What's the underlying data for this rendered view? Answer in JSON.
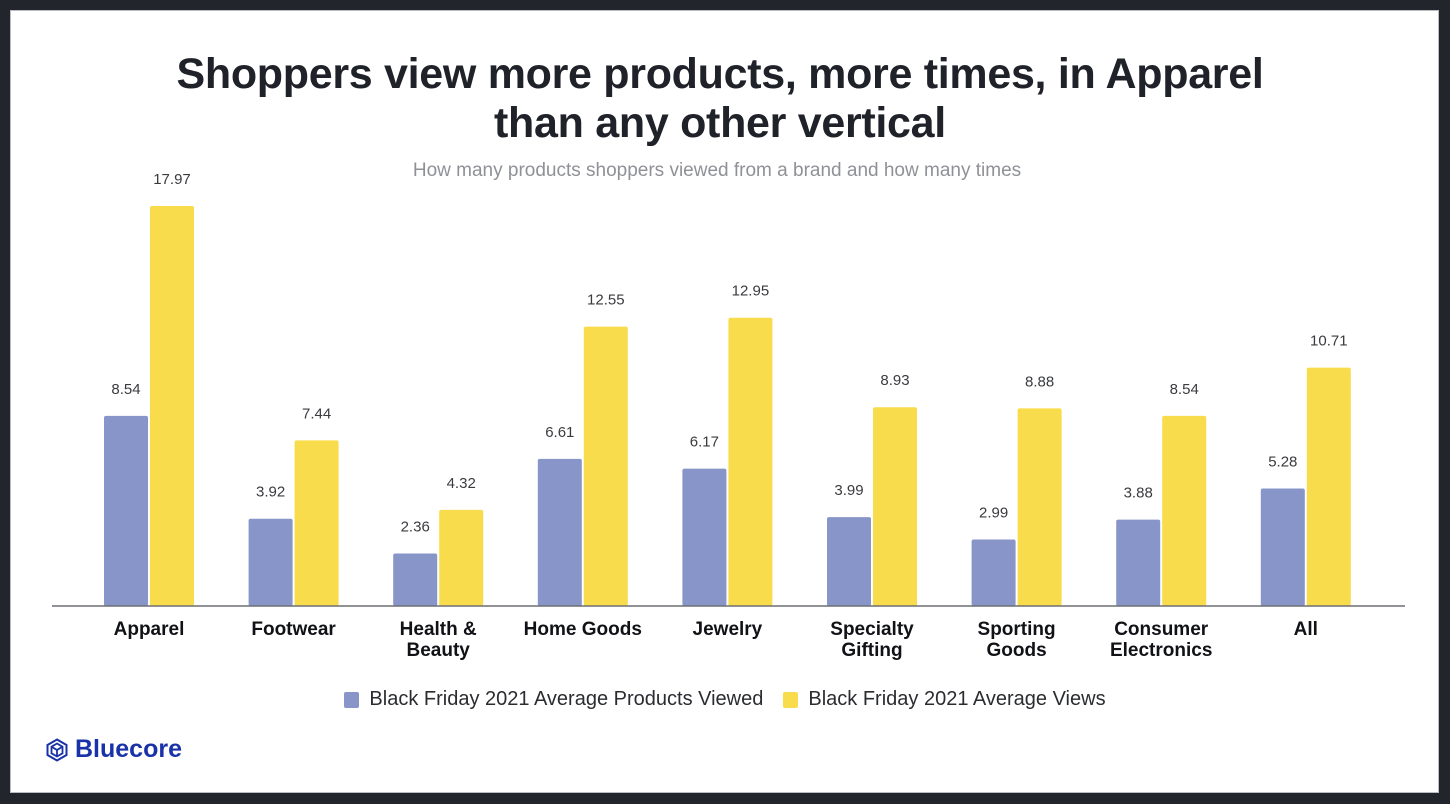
{
  "title_line1": "Shoppers view more products, more times, in Apparel",
  "title_line2": "than any other vertical",
  "subtitle": "How many products shoppers viewed from a brand and how many times",
  "logo": {
    "icon": "cube-icon",
    "text": "Bluecore",
    "color": "#1a32a8"
  },
  "legend": [
    {
      "label": "Black Friday 2021 Average Products Viewed",
      "color": "#8795c8"
    },
    {
      "label": "Black Friday 2021 Average Views",
      "color": "#f9dc4b"
    }
  ],
  "chart_data": {
    "type": "bar",
    "title": "Shoppers view more products, more times, in Apparel than any other vertical",
    "subtitle": "How many products shoppers viewed from a brand and how many times",
    "xlabel": "",
    "ylabel": "",
    "ylim": [
      0,
      17.97
    ],
    "grid": false,
    "legend_position": "bottom",
    "categories": [
      [
        "Apparel"
      ],
      [
        "Footwear"
      ],
      [
        "Health &",
        "Beauty"
      ],
      [
        "Home Goods"
      ],
      [
        "Jewelry"
      ],
      [
        "Specialty",
        "Gifting"
      ],
      [
        "Sporting",
        "Goods"
      ],
      [
        "Consumer",
        "Electronics"
      ],
      [
        "All"
      ]
    ],
    "series": [
      {
        "name": "Black Friday 2021 Average Products Viewed",
        "color": "#8795c8",
        "values": [
          8.54,
          3.92,
          2.36,
          6.61,
          6.17,
          3.99,
          2.99,
          3.88,
          5.28
        ]
      },
      {
        "name": "Black Friday 2021 Average Views",
        "color": "#f9dc4b",
        "values": [
          17.97,
          7.44,
          4.32,
          12.55,
          12.95,
          8.93,
          8.88,
          8.54,
          10.71
        ]
      }
    ]
  }
}
